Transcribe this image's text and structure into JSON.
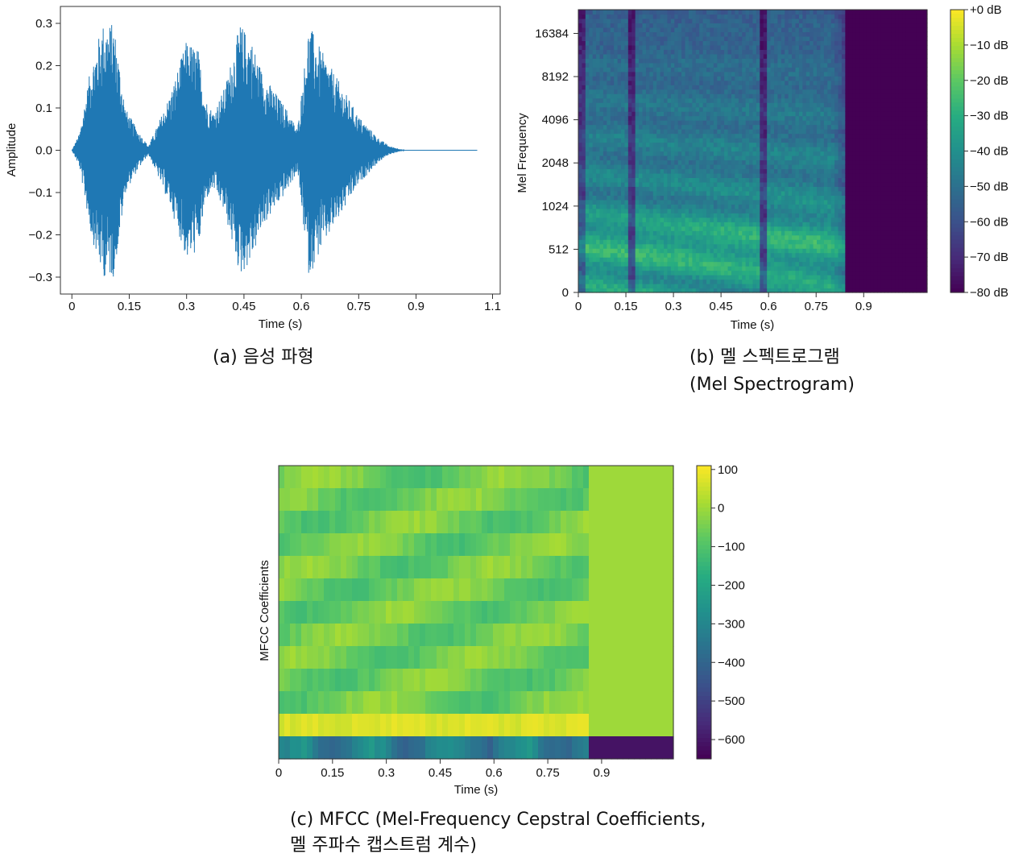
{
  "captions": {
    "a": "(a) 음성 파형",
    "b_line1": "(b) 멜 스펙트로그램",
    "b_line2": "(Mel Spectrogram)",
    "c_line1": "(c) MFCC (Mel-Frequency Cepstral Coefficients,",
    "c_line2": "멜 주파수 캡스트럼 계수)"
  },
  "colors": {
    "waveform": "#1f78b4"
  },
  "chart_data": [
    {
      "type": "line",
      "xlabel": "Time (s)",
      "ylabel": "Amplitude",
      "xlim": [
        -0.03,
        1.12
      ],
      "ylim": [
        -0.34,
        0.34
      ],
      "xticks": [
        0,
        0.15,
        0.3,
        0.45,
        0.6,
        0.75,
        0.9,
        1.1
      ],
      "xtick_labels": [
        "0",
        "0.15",
        "0.3",
        "0.45",
        "0.6",
        "0.75",
        "0.9",
        "1.1"
      ],
      "yticks": [
        -0.3,
        -0.2,
        -0.1,
        0.0,
        0.1,
        0.2,
        0.3
      ],
      "ytick_labels": [
        "−0.3",
        "−0.2",
        "−0.1",
        "0.0",
        "0.1",
        "0.2",
        "0.3"
      ],
      "grid": false,
      "series": [
        {
          "envelope": [
            [
              0.0,
              0.0
            ],
            [
              0.02,
              0.04
            ],
            [
              0.05,
              0.2
            ],
            [
              0.08,
              0.3
            ],
            [
              0.11,
              0.3
            ],
            [
              0.14,
              0.1
            ],
            [
              0.17,
              0.05
            ],
            [
              0.2,
              0.01
            ],
            [
              0.22,
              0.05
            ],
            [
              0.26,
              0.14
            ],
            [
              0.3,
              0.26
            ],
            [
              0.33,
              0.24
            ],
            [
              0.35,
              0.12
            ],
            [
              0.37,
              0.09
            ],
            [
              0.4,
              0.15
            ],
            [
              0.44,
              0.3
            ],
            [
              0.47,
              0.26
            ],
            [
              0.5,
              0.18
            ],
            [
              0.53,
              0.14
            ],
            [
              0.56,
              0.1
            ],
            [
              0.59,
              0.05
            ],
            [
              0.62,
              0.3
            ],
            [
              0.65,
              0.24
            ],
            [
              0.7,
              0.16
            ],
            [
              0.75,
              0.08
            ],
            [
              0.8,
              0.03
            ],
            [
              0.83,
              0.01
            ],
            [
              0.87,
              0.0
            ],
            [
              1.06,
              0.0
            ]
          ]
        }
      ]
    },
    {
      "type": "heatmap",
      "xlabel": "Time (s)",
      "ylabel": "Mel Frequency",
      "xlim": [
        0,
        1.1
      ],
      "xticks": [
        0,
        0.15,
        0.3,
        0.45,
        0.6,
        0.75,
        0.9
      ],
      "xtick_labels": [
        "0",
        "0.15",
        "0.3",
        "0.45",
        "0.6",
        "0.75",
        "0.9"
      ],
      "y_scale": "mel",
      "ytick_labels": [
        "0",
        "512",
        "1024",
        "2048",
        "4096",
        "8192",
        "16384"
      ],
      "colorbar": {
        "range": [
          -80,
          0
        ],
        "ticks": [
          0,
          -10,
          -20,
          -30,
          -40,
          -50,
          -60,
          -70,
          -80
        ],
        "tick_labels": [
          "+0 dB",
          "−10 dB",
          "−20 dB",
          "−30 dB",
          "−40 dB",
          "−50 dB",
          "−60 dB",
          "−70 dB",
          "−80 dB"
        ],
        "colormap": "viridis"
      },
      "active_until": 0.84,
      "gaps": [
        0.17,
        0.58
      ]
    },
    {
      "type": "heatmap",
      "xlabel": "Time (s)",
      "ylabel": "MFCC Coefficients",
      "xlim": [
        0,
        1.1
      ],
      "xticks": [
        0,
        0.15,
        0.3,
        0.45,
        0.6,
        0.75,
        0.9
      ],
      "xtick_labels": [
        "0",
        "0.15",
        "0.3",
        "0.45",
        "0.6",
        "0.75",
        "0.9"
      ],
      "rows": 13,
      "colorbar": {
        "range": [
          -650,
          110
        ],
        "ticks": [
          100,
          0,
          -100,
          -200,
          -300,
          -400,
          -500,
          -600
        ],
        "tick_labels": [
          "100",
          "0",
          "−100",
          "−200",
          "−300",
          "−400",
          "−500",
          "−600"
        ],
        "colormap": "viridis"
      },
      "active_until": 0.86
    }
  ]
}
